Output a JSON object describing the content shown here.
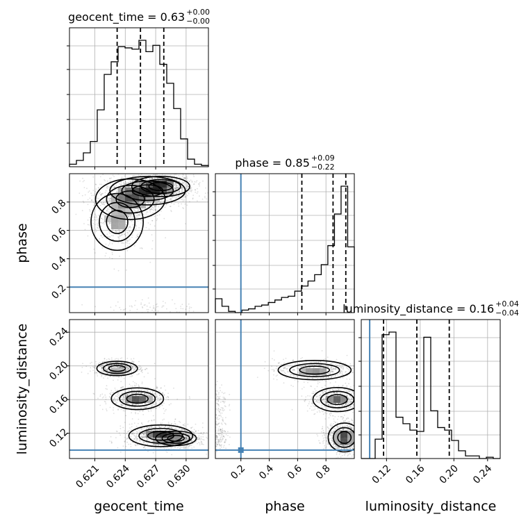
{
  "chart_data": {
    "type": "corner",
    "truth_color": "#4682b4",
    "params": [
      {
        "name": "geocent_time",
        "label": "geocent_time",
        "range": [
          0.6185,
          0.6322
        ],
        "ticks": [
          0.621,
          0.624,
          0.627,
          0.63
        ],
        "tick_labels": [
          "0.621",
          "0.624",
          "0.627",
          "0.630"
        ],
        "title": {
          "prefix": "geocent_time = 0.63",
          "sup": "+0.00",
          "sub": "−0.00"
        },
        "quantiles": [
          0.6232,
          0.6255,
          0.6278
        ],
        "truth": null,
        "hist": [
          0.02,
          0.05,
          0.11,
          0.2,
          0.45,
          0.73,
          0.83,
          0.95,
          0.94,
          0.93,
          1.0,
          0.91,
          0.96,
          0.81,
          0.66,
          0.46,
          0.22,
          0.06,
          0.02,
          0.01
        ]
      },
      {
        "name": "phase",
        "label": "phase",
        "range": [
          0.02,
          1.0
        ],
        "ticks": [
          0.2,
          0.4,
          0.6,
          0.8
        ],
        "tick_labels": [
          "0.2",
          "0.4",
          "0.6",
          "0.8"
        ],
        "title": {
          "prefix": "phase = 0.85",
          "sup": "+0.09",
          "sub": "−0.22"
        },
        "quantiles": [
          0.63,
          0.85,
          0.94
        ],
        "truth": 0.2,
        "hist": [
          0.11,
          0.05,
          0.01,
          0.0,
          0.02,
          0.03,
          0.05,
          0.06,
          0.08,
          0.1,
          0.12,
          0.13,
          0.17,
          0.21,
          0.25,
          0.3,
          0.38,
          0.53,
          0.78,
          1.0,
          0.52
        ]
      },
      {
        "name": "luminosity_distance",
        "label": "luminosity_distance",
        "range": [
          0.09,
          0.255
        ],
        "ticks": [
          0.12,
          0.16,
          0.2,
          0.24
        ],
        "tick_labels": [
          "0.12",
          "0.16",
          "0.20",
          "0.24"
        ],
        "title": {
          "prefix": "luminosity_distance = 0.16",
          "sup": "+0.04",
          "sub": "−0.04"
        },
        "quantiles": [
          0.1165,
          0.156,
          0.1945
        ],
        "truth": 0.1,
        "hist": [
          0.0,
          0.0,
          0.15,
          0.96,
          0.98,
          0.32,
          0.27,
          0.22,
          0.21,
          0.94,
          0.37,
          0.24,
          0.22,
          0.14,
          0.06,
          0.02,
          0.02,
          0.0,
          0.01,
          0.0
        ]
      }
    ],
    "pairs": [
      {
        "x": "geocent_time",
        "y": "phase",
        "truth_y": 0.2,
        "density_blobs": [
          {
            "x": 0.6275,
            "y": 0.91,
            "sx": 0.001,
            "sy": 0.025,
            "w": 1.0
          },
          {
            "x": 0.6262,
            "y": 0.88,
            "sx": 0.0013,
            "sy": 0.035,
            "w": 0.7
          },
          {
            "x": 0.6245,
            "y": 0.82,
            "sx": 0.0012,
            "sy": 0.05,
            "w": 0.7
          },
          {
            "x": 0.6232,
            "y": 0.66,
            "sx": 0.0009,
            "sy": 0.07,
            "w": 0.45
          },
          {
            "x": 0.6268,
            "y": 0.04,
            "sx": 0.0015,
            "sy": 0.025,
            "w": 0.12
          }
        ]
      },
      {
        "x": "geocent_time",
        "y": "luminosity_distance",
        "truth_y": 0.1,
        "density_blobs": [
          {
            "x": 0.6275,
            "y": 0.117,
            "sx": 0.0011,
            "sy": 0.0045,
            "w": 1.0
          },
          {
            "x": 0.629,
            "y": 0.114,
            "sx": 0.0007,
            "sy": 0.003,
            "w": 0.7
          },
          {
            "x": 0.6252,
            "y": 0.161,
            "sx": 0.0009,
            "sy": 0.0045,
            "w": 0.8
          },
          {
            "x": 0.6232,
            "y": 0.197,
            "sx": 0.0007,
            "sy": 0.003,
            "w": 0.75
          }
        ]
      },
      {
        "x": "phase",
        "y": "luminosity_distance",
        "truth_x": 0.2,
        "truth_y": 0.1,
        "density_blobs": [
          {
            "x": 0.93,
            "y": 0.115,
            "sx": 0.04,
            "sy": 0.006,
            "w": 1.0
          },
          {
            "x": 0.88,
            "y": 0.16,
            "sx": 0.06,
            "sy": 0.005,
            "w": 0.7
          },
          {
            "x": 0.72,
            "y": 0.195,
            "sx": 0.09,
            "sy": 0.004,
            "w": 0.55
          },
          {
            "x": 0.04,
            "y": 0.118,
            "sx": 0.02,
            "sy": 0.006,
            "w": 0.2
          },
          {
            "x": 0.04,
            "y": 0.155,
            "sx": 0.02,
            "sy": 0.008,
            "w": 0.12
          }
        ]
      }
    ]
  }
}
